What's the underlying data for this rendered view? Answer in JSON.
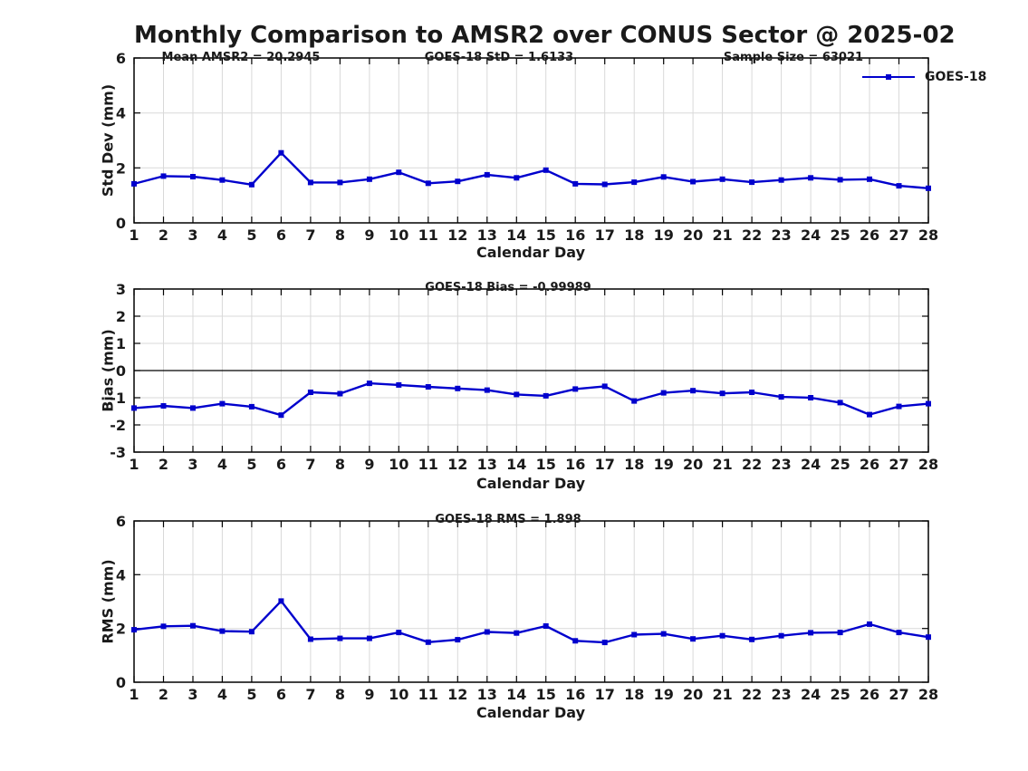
{
  "title": "Monthly Comparison to AMSR2 over CONUS Sector @ 2025-02",
  "colors": {
    "series": "#0000cd",
    "grid": "#d9d9d9",
    "axis": "#000000",
    "text": "#1a1a1a"
  },
  "legend": {
    "label": "GOES-18",
    "marker": "filled-square"
  },
  "chart_data": [
    {
      "type": "line",
      "ylabel": "Std Dev (mm)",
      "xlabel": "Calendar Day",
      "ylim": [
        0,
        6
      ],
      "yticks": [
        0,
        2,
        4,
        6
      ],
      "grid": true,
      "annotations": [
        "Mean AMSR2 = 20.2945",
        "GOES-18 StD = 1.6133",
        "Sample Size = 63021"
      ],
      "x": [
        1,
        2,
        3,
        4,
        5,
        6,
        7,
        8,
        9,
        10,
        11,
        12,
        13,
        14,
        15,
        16,
        17,
        18,
        19,
        20,
        21,
        22,
        23,
        24,
        25,
        26,
        27,
        28
      ],
      "series": [
        {
          "name": "GOES-18",
          "color": "#0000cd",
          "values": [
            1.42,
            1.7,
            1.68,
            1.56,
            1.39,
            2.55,
            1.47,
            1.47,
            1.59,
            1.84,
            1.44,
            1.51,
            1.75,
            1.64,
            1.92,
            1.42,
            1.4,
            1.48,
            1.67,
            1.5,
            1.59,
            1.48,
            1.56,
            1.64,
            1.57,
            1.59,
            1.35,
            1.26
          ]
        }
      ]
    },
    {
      "type": "line",
      "ylabel": "Bias (mm)",
      "xlabel": "Calendar Day",
      "ylim": [
        -3,
        3
      ],
      "yticks": [
        -3,
        -2,
        -1,
        0,
        1,
        2,
        3
      ],
      "grid": true,
      "zero_line": true,
      "annotations": [
        "GOES-18 Bias = -0.99989"
      ],
      "x": [
        1,
        2,
        3,
        4,
        5,
        6,
        7,
        8,
        9,
        10,
        11,
        12,
        13,
        14,
        15,
        16,
        17,
        18,
        19,
        20,
        21,
        22,
        23,
        24,
        25,
        26,
        27,
        28
      ],
      "series": [
        {
          "name": "GOES-18",
          "color": "#0000cd",
          "values": [
            -1.38,
            -1.3,
            -1.38,
            -1.22,
            -1.33,
            -1.64,
            -0.8,
            -0.85,
            -0.47,
            -0.53,
            -0.6,
            -0.66,
            -0.72,
            -0.88,
            -0.93,
            -0.68,
            -0.58,
            -1.12,
            -0.82,
            -0.74,
            -0.84,
            -0.8,
            -0.97,
            -1.0,
            -1.18,
            -1.62,
            -1.32,
            -1.22
          ]
        }
      ]
    },
    {
      "type": "line",
      "ylabel": "RMS (mm)",
      "xlabel": "Calendar Day",
      "ylim": [
        0,
        6
      ],
      "yticks": [
        0,
        2,
        4,
        6
      ],
      "grid": true,
      "annotations": [
        "GOES-18 RMS = 1.898"
      ],
      "x": [
        1,
        2,
        3,
        4,
        5,
        6,
        7,
        8,
        9,
        10,
        11,
        12,
        13,
        14,
        15,
        16,
        17,
        18,
        19,
        20,
        21,
        22,
        23,
        24,
        25,
        26,
        27,
        28
      ],
      "series": [
        {
          "name": "GOES-18",
          "color": "#0000cd",
          "values": [
            1.95,
            2.08,
            2.1,
            1.9,
            1.88,
            3.02,
            1.6,
            1.63,
            1.63,
            1.85,
            1.49,
            1.58,
            1.87,
            1.83,
            2.09,
            1.54,
            1.48,
            1.77,
            1.8,
            1.61,
            1.73,
            1.59,
            1.73,
            1.84,
            1.85,
            2.16,
            1.85,
            1.68
          ]
        }
      ]
    }
  ]
}
